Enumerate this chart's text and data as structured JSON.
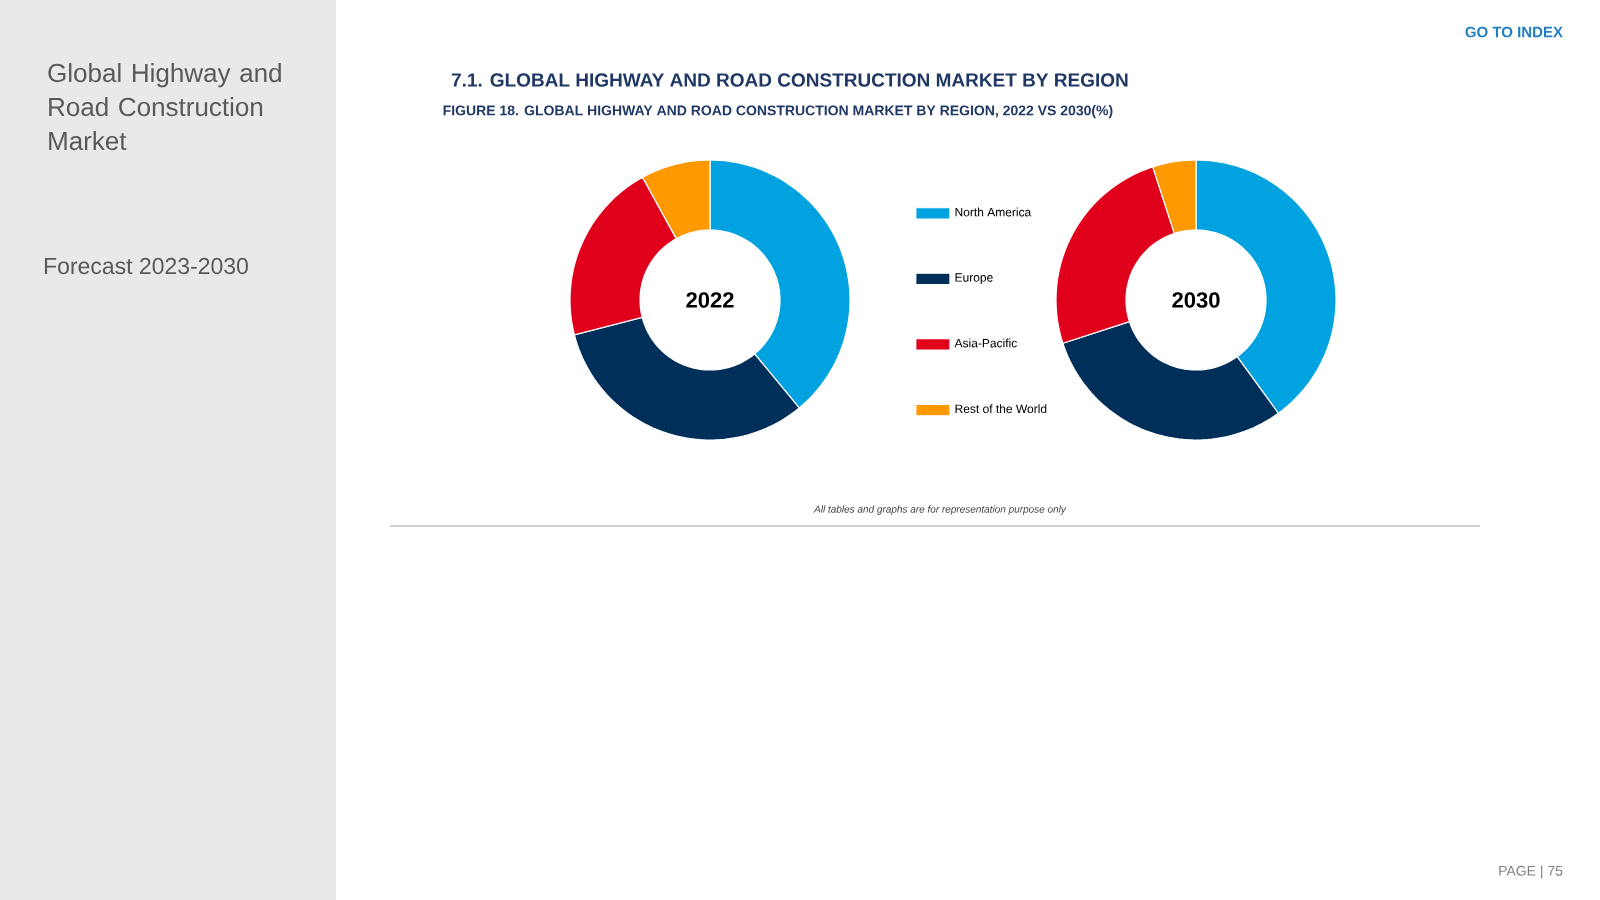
{
  "chart_data": [
    {
      "type": "donut",
      "title": "FIGURE 18.     GLOBAL HIGHWAY AND ROAD CONSTRUCTION MARKET BY REGION, 2022 VS 2030(%)",
      "subtitle": "2022",
      "categories": [
        "North America",
        "Europe",
        "Asia-Pacific",
        "Rest of the World"
      ],
      "values": [
        39,
        32,
        21,
        8
      ],
      "colors": [
        "#00a3e0",
        "#002f5a",
        "#e0001b",
        "#ff9900"
      ],
      "legend": "right",
      "annotations": [
        "Global Highway and Road Construction Market",
        "Forecast 2023-2030",
        "GO TO INDEX",
        "7.1.   GLOBAL HIGHWAY AND ROAD CONSTRUCTION MARKET BY REGION",
        "*All tables and graphs are for representation purpose only*",
        "PAGE | 75"
      ]
    },
    {
      "type": "donut",
      "subtitle": "2030",
      "categories": [
        null,
        null,
        null,
        null
      ],
      "values": [
        40,
        30,
        25,
        5
      ],
      "colors": [
        "#00a3e0",
        "#002f5a",
        "#e0001b",
        "#ff9900"
      ],
      "legend": false
    }
  ]
}
